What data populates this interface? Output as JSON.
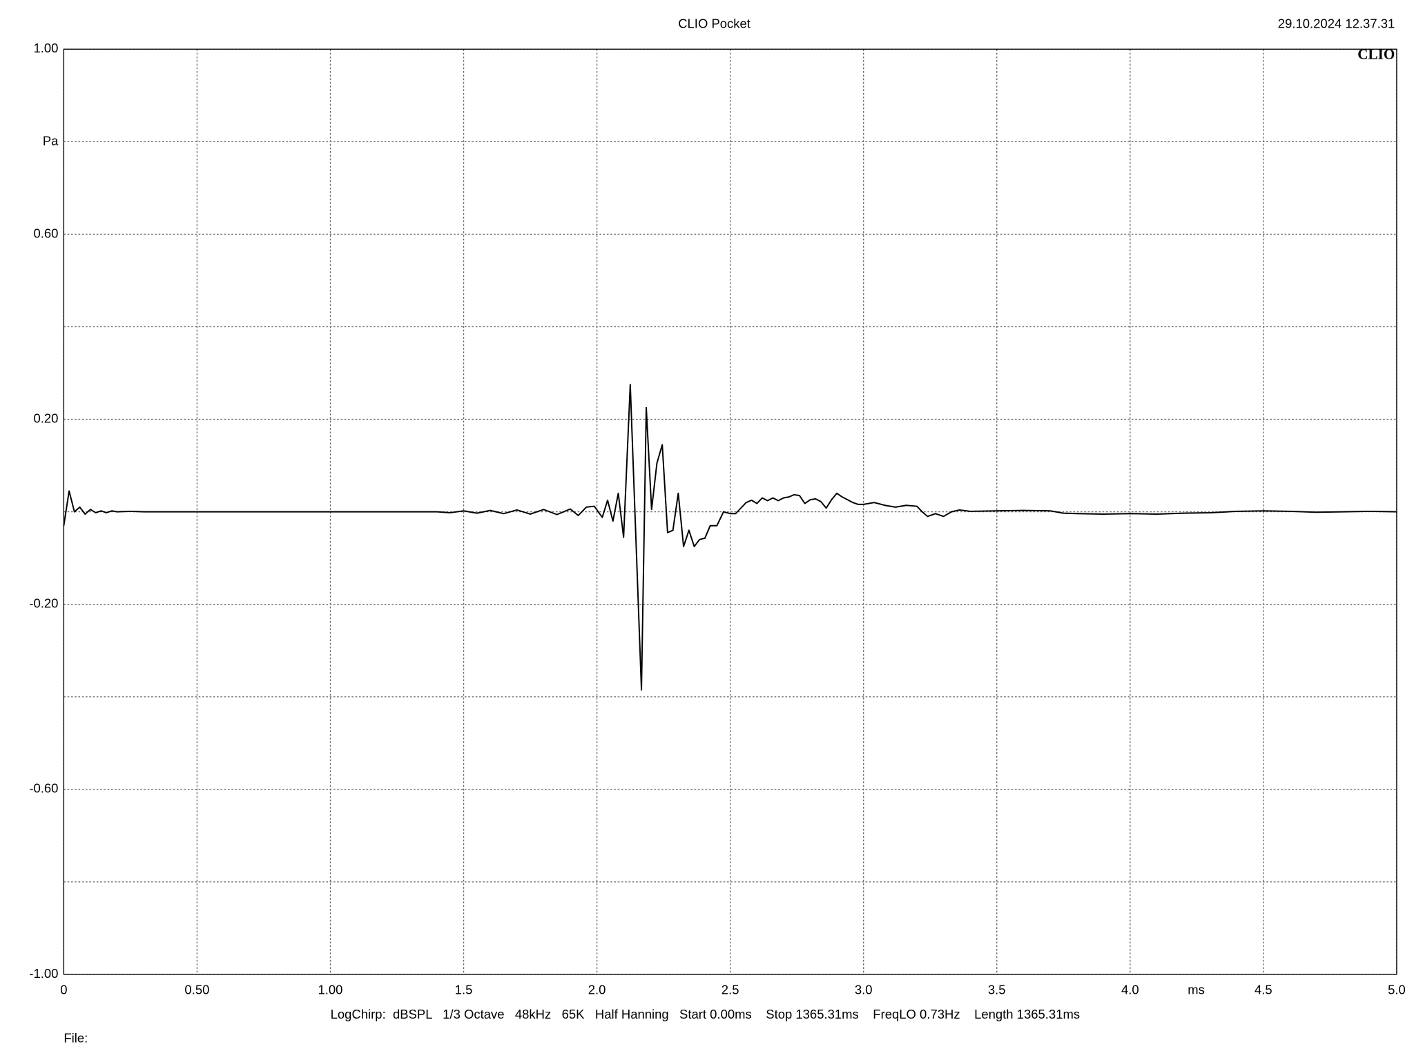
{
  "chart_data": {
    "type": "line",
    "title": "CLIO Pocket",
    "timestamp": "29.10.2024 12.37.31",
    "logo": "CLIO",
    "y_unit": "Pa",
    "x_unit": "ms",
    "footer": "LogChirp:  dBSPL   1/3 Octave   48kHz   65K   Half Hanning   Start 0.00ms    Stop 1365.31ms    FreqLO 0.73Hz    Length 1365.31ms",
    "file_label": "File:",
    "color": "#000000",
    "grid": true,
    "xlim": [
      0,
      5
    ],
    "ylim": [
      -1,
      1
    ],
    "xticks": [
      0,
      {
        "value": 0.5,
        "label": "0.50"
      },
      {
        "value": 1,
        "label": "1.00"
      },
      1.5,
      {
        "value": 2,
        "label": "2.0"
      },
      2.5,
      {
        "value": 3,
        "label": "3.0"
      },
      3.5,
      {
        "value": 4,
        "label": "4.0"
      },
      4.5,
      {
        "value": 5,
        "label": "5.0"
      }
    ],
    "yticks": [
      {
        "value": 1,
        "label": "1.00"
      },
      {
        "value": 0.6,
        "label": "0.60"
      },
      {
        "value": 0.2,
        "label": "0.20"
      },
      {
        "value": -0.2,
        "label": "-0.20"
      },
      {
        "value": -0.6,
        "label": "-0.60"
      },
      {
        "value": -1,
        "label": "-1.00"
      }
    ],
    "yminorticks": [
      0.8,
      0.4,
      0,
      -0.4,
      -0.8
    ],
    "x": [
      0,
      0.02,
      0.04,
      0.06,
      0.08,
      0.1,
      0.12,
      0.14,
      0.16,
      0.18,
      0.2,
      0.25,
      0.3,
      1.4,
      1.45,
      1.5,
      1.55,
      1.6,
      1.65,
      1.7,
      1.75,
      1.8,
      1.85,
      1.9,
      1.93,
      1.96,
      1.99,
      2.02,
      2.04,
      2.06,
      2.08,
      2.1,
      2.125,
      2.167,
      2.185,
      2.205,
      2.225,
      2.245,
      2.265,
      2.285,
      2.305,
      2.325,
      2.345,
      2.365,
      2.385,
      2.405,
      2.425,
      2.45,
      2.475,
      2.5,
      2.52,
      2.54,
      2.56,
      2.58,
      2.6,
      2.62,
      2.64,
      2.66,
      2.68,
      2.7,
      2.72,
      2.74,
      2.76,
      2.78,
      2.8,
      2.82,
      2.84,
      2.86,
      2.88,
      2.9,
      2.92,
      2.94,
      2.96,
      2.98,
      3.0,
      3.04,
      3.08,
      3.12,
      3.16,
      3.2,
      3.22,
      3.24,
      3.27,
      3.3,
      3.33,
      3.36,
      3.4,
      3.5,
      3.6,
      3.7,
      3.75,
      3.8,
      3.9,
      4.0,
      4.1,
      4.2,
      4.3,
      4.4,
      4.5,
      4.6,
      4.7,
      4.8,
      4.9,
      5.0
    ],
    "values": [
      -0.03,
      0.045,
      0,
      0.01,
      -0.005,
      0.005,
      -0.002,
      0.002,
      -0.002,
      0.002,
      0,
      0.001,
      0,
      0,
      -0.002,
      0.002,
      -0.003,
      0.003,
      -0.004,
      0.004,
      -0.005,
      0.005,
      -0.006,
      0.006,
      -0.008,
      0.01,
      0.012,
      -0.012,
      0.025,
      -0.02,
      0.04,
      -0.055,
      0.275,
      -0.385,
      0.225,
      0.005,
      0.105,
      0.145,
      -0.045,
      -0.04,
      0.04,
      -0.075,
      -0.04,
      -0.075,
      -0.06,
      -0.057,
      -0.03,
      -0.03,
      0,
      -0.004,
      -0.004,
      0.008,
      0.02,
      0.025,
      0.018,
      0.03,
      0.024,
      0.03,
      0.024,
      0.03,
      0.032,
      0.037,
      0.035,
      0.018,
      0.026,
      0.028,
      0.022,
      0.008,
      0.026,
      0.04,
      0.032,
      0.026,
      0.02,
      0.016,
      0.016,
      0.02,
      0.014,
      0.01,
      0.014,
      0.012,
      0,
      -0.01,
      -0.004,
      -0.01,
      0,
      0.004,
      0.001,
      0.002,
      0.003,
      0.002,
      -0.003,
      -0.004,
      -0.005,
      -0.004,
      -0.005,
      -0.003,
      -0.002,
      0.001,
      0.002,
      0.001,
      -0.001,
      0,
      0.001,
      0
    ]
  }
}
